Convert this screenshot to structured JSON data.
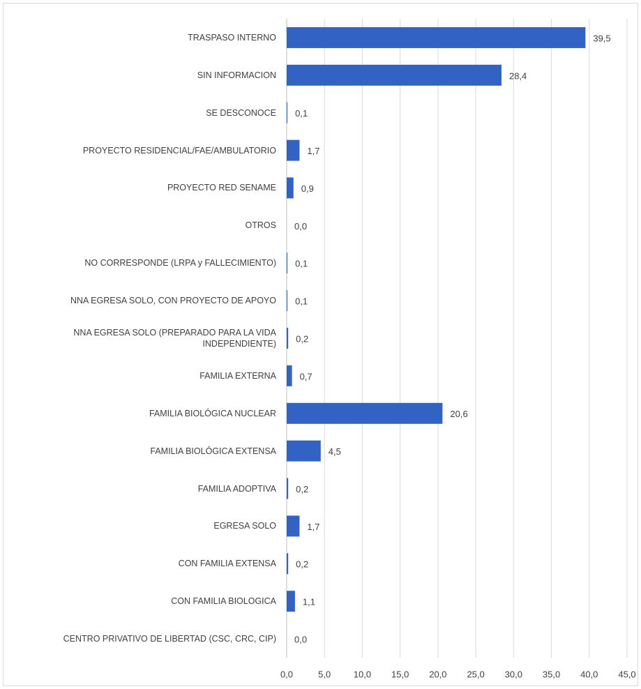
{
  "chart_data": {
    "type": "bar",
    "orientation": "horizontal",
    "categories": [
      "TRASPASO INTERNO",
      "SIN INFORMACION",
      "SE DESCONOCE",
      "PROYECTO RESIDENCIAL/FAE/AMBULATORIO",
      "PROYECTO RED SENAME",
      "OTROS",
      "NO CORRESPONDE (LRPA y FALLECIMIENTO)",
      "NNA EGRESA SOLO, CON PROYECTO DE APOYO",
      "NNA EGRESA SOLO (PREPARADO PARA LA VIDA INDEPENDIENTE)",
      "FAMILIA EXTERNA",
      "FAMILIA BIOLÓGICA NUCLEAR",
      "FAMILIA BIOLÓGICA EXTENSA",
      "FAMILIA ADOPTIVA",
      "EGRESA SOLO",
      "CON FAMILIA EXTENSA",
      "CON FAMILIA BIOLOGICA",
      "CENTRO PRIVATIVO DE LIBERTAD (CSC, CRC, CIP)"
    ],
    "values": [
      39.5,
      28.4,
      0.1,
      1.7,
      0.9,
      0.0,
      0.1,
      0.1,
      0.2,
      0.7,
      20.6,
      4.5,
      0.2,
      1.7,
      0.2,
      1.1,
      0.0
    ],
    "value_labels": [
      "39,5",
      "28,4",
      "0,1",
      "1,7",
      "0,9",
      "0,0",
      "0,1",
      "0,1",
      "0,2",
      "0,7",
      "20,6",
      "4,5",
      "0,2",
      "1,7",
      "0,2",
      "1,1",
      "0,0"
    ],
    "color": "#3262c4",
    "xlim": [
      0,
      45
    ],
    "xticks": [
      {
        "value": 0,
        "label": "0,0"
      },
      {
        "value": 5,
        "label": "5,0"
      },
      {
        "value": 10,
        "label": "10,0"
      },
      {
        "value": 15,
        "label": "15,0"
      },
      {
        "value": 20,
        "label": "20,0"
      },
      {
        "value": 25,
        "label": "25,0"
      },
      {
        "value": 30,
        "label": "30,0"
      },
      {
        "value": 35,
        "label": "35,0"
      },
      {
        "value": 40,
        "label": "40,0"
      },
      {
        "value": 45,
        "label": "45,0"
      }
    ],
    "grid": true
  }
}
